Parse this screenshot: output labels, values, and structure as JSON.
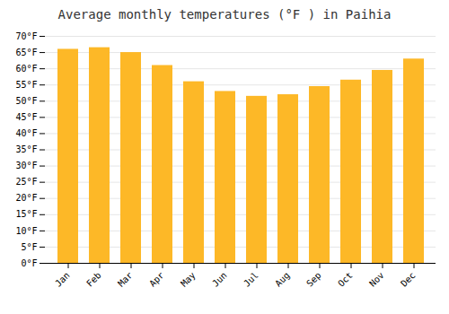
{
  "chart_data": {
    "type": "bar",
    "title": "Average monthly temperatures (°F ) in Paihia",
    "categories": [
      "Jan",
      "Feb",
      "Mar",
      "Apr",
      "May",
      "Jun",
      "Jul",
      "Aug",
      "Sep",
      "Oct",
      "Nov",
      "Dec"
    ],
    "values": [
      66,
      66.5,
      65,
      61,
      56,
      53,
      51.5,
      52,
      54.5,
      56.5,
      59.5,
      63
    ],
    "color": "#FDB827",
    "ylim": [
      0,
      70
    ],
    "yticks": [
      {
        "value": 0,
        "label": "0°F"
      },
      {
        "value": 5,
        "label": "5°F"
      },
      {
        "value": 10,
        "label": "10°F"
      },
      {
        "value": 15,
        "label": "15°F"
      },
      {
        "value": 20,
        "label": "20°F"
      },
      {
        "value": 25,
        "label": "25°F"
      },
      {
        "value": 30,
        "label": "30°F"
      },
      {
        "value": 35,
        "label": "35°F"
      },
      {
        "value": 40,
        "label": "40°F"
      },
      {
        "value": 45,
        "label": "45°F"
      },
      {
        "value": 50,
        "label": "50°F"
      },
      {
        "value": 55,
        "label": "55°F"
      },
      {
        "value": 60,
        "label": "60°F"
      },
      {
        "value": 65,
        "label": "65°F"
      },
      {
        "value": 70,
        "label": "70°F"
      }
    ],
    "grid": true
  }
}
